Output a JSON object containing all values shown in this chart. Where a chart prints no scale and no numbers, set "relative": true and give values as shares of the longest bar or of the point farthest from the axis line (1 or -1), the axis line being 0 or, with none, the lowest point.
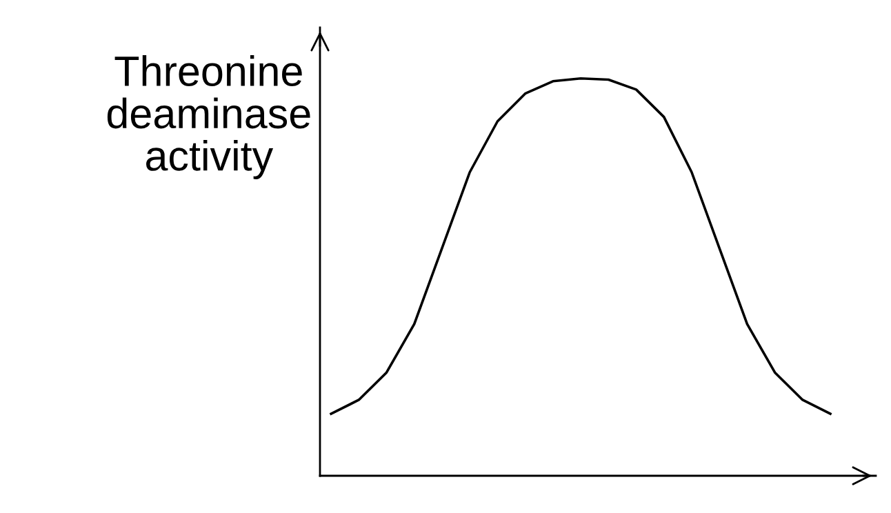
{
  "chart_data": {
    "type": "line",
    "relative": true,
    "ylabel": "Threonine\ndeaminase\nactivity",
    "color": "#000000",
    "grid": false,
    "legend": false,
    "marker": "none",
    "line_style": "solid",
    "categories": [
      null,
      null,
      null,
      null,
      null,
      null,
      null,
      null,
      null,
      null,
      null,
      null,
      null,
      null,
      null,
      null,
      null,
      null,
      null
    ],
    "values": [
      0.156,
      0.191,
      0.26,
      0.382,
      0.573,
      0.764,
      0.892,
      0.962,
      0.993,
      1.0,
      0.997,
      0.972,
      0.903,
      0.764,
      0.573,
      0.382,
      0.26,
      0.191,
      0.156
    ]
  }
}
